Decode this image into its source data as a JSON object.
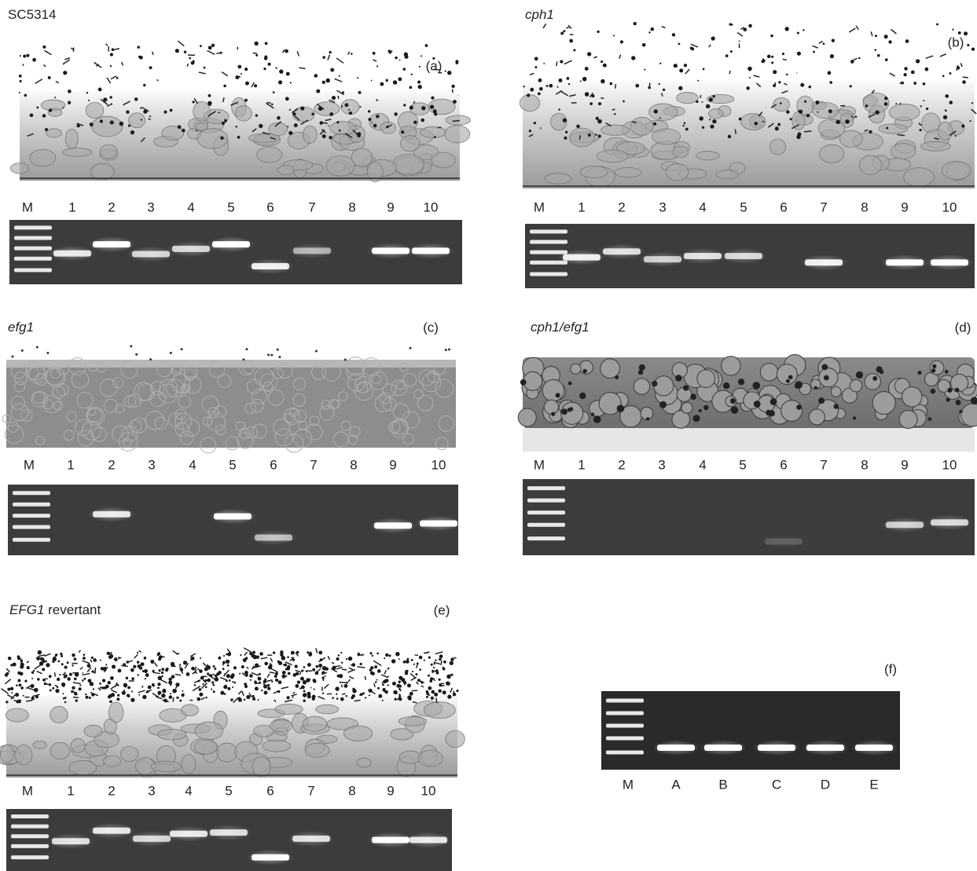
{
  "panels": [
    {
      "title": [
        {
          "text": "SC5314",
          "italic": false
        }
      ],
      "letter": "(a)",
      "lanes": [
        "M",
        "1",
        "2",
        "3",
        "4",
        "5",
        "6",
        "7",
        "8",
        "9",
        "10"
      ]
    },
    {
      "title": [
        {
          "text": "cph1",
          "italic": true
        }
      ],
      "letter": "(b)",
      "lanes": [
        "M",
        "1",
        "2",
        "3",
        "4",
        "5",
        "6",
        "7",
        "8",
        "9",
        "10"
      ]
    },
    {
      "title": [
        {
          "text": "efg1",
          "italic": true
        }
      ],
      "letter": "(c)",
      "lanes": [
        "M",
        "1",
        "2",
        "3",
        "4",
        "5",
        "6",
        "7",
        "8",
        "9",
        "10"
      ]
    },
    {
      "title": [
        {
          "text": "cph1/efg1",
          "italic": true
        }
      ],
      "letter": "(d)",
      "lanes": [
        "M",
        "1",
        "2",
        "3",
        "4",
        "5",
        "6",
        "7",
        "8",
        "9",
        "10"
      ]
    },
    {
      "title": [
        {
          "text": "EFG1",
          "italic": true
        },
        {
          "text": "revertant",
          "italic": false
        }
      ],
      "letter": "(e)",
      "lanes": [
        "M",
        "1",
        "2",
        "3",
        "4",
        "5",
        "6",
        "7",
        "8",
        "9",
        "10"
      ]
    },
    {
      "letter": "(f)",
      "lanes": [
        "M",
        "A",
        "B",
        "C",
        "D",
        "E"
      ]
    }
  ]
}
